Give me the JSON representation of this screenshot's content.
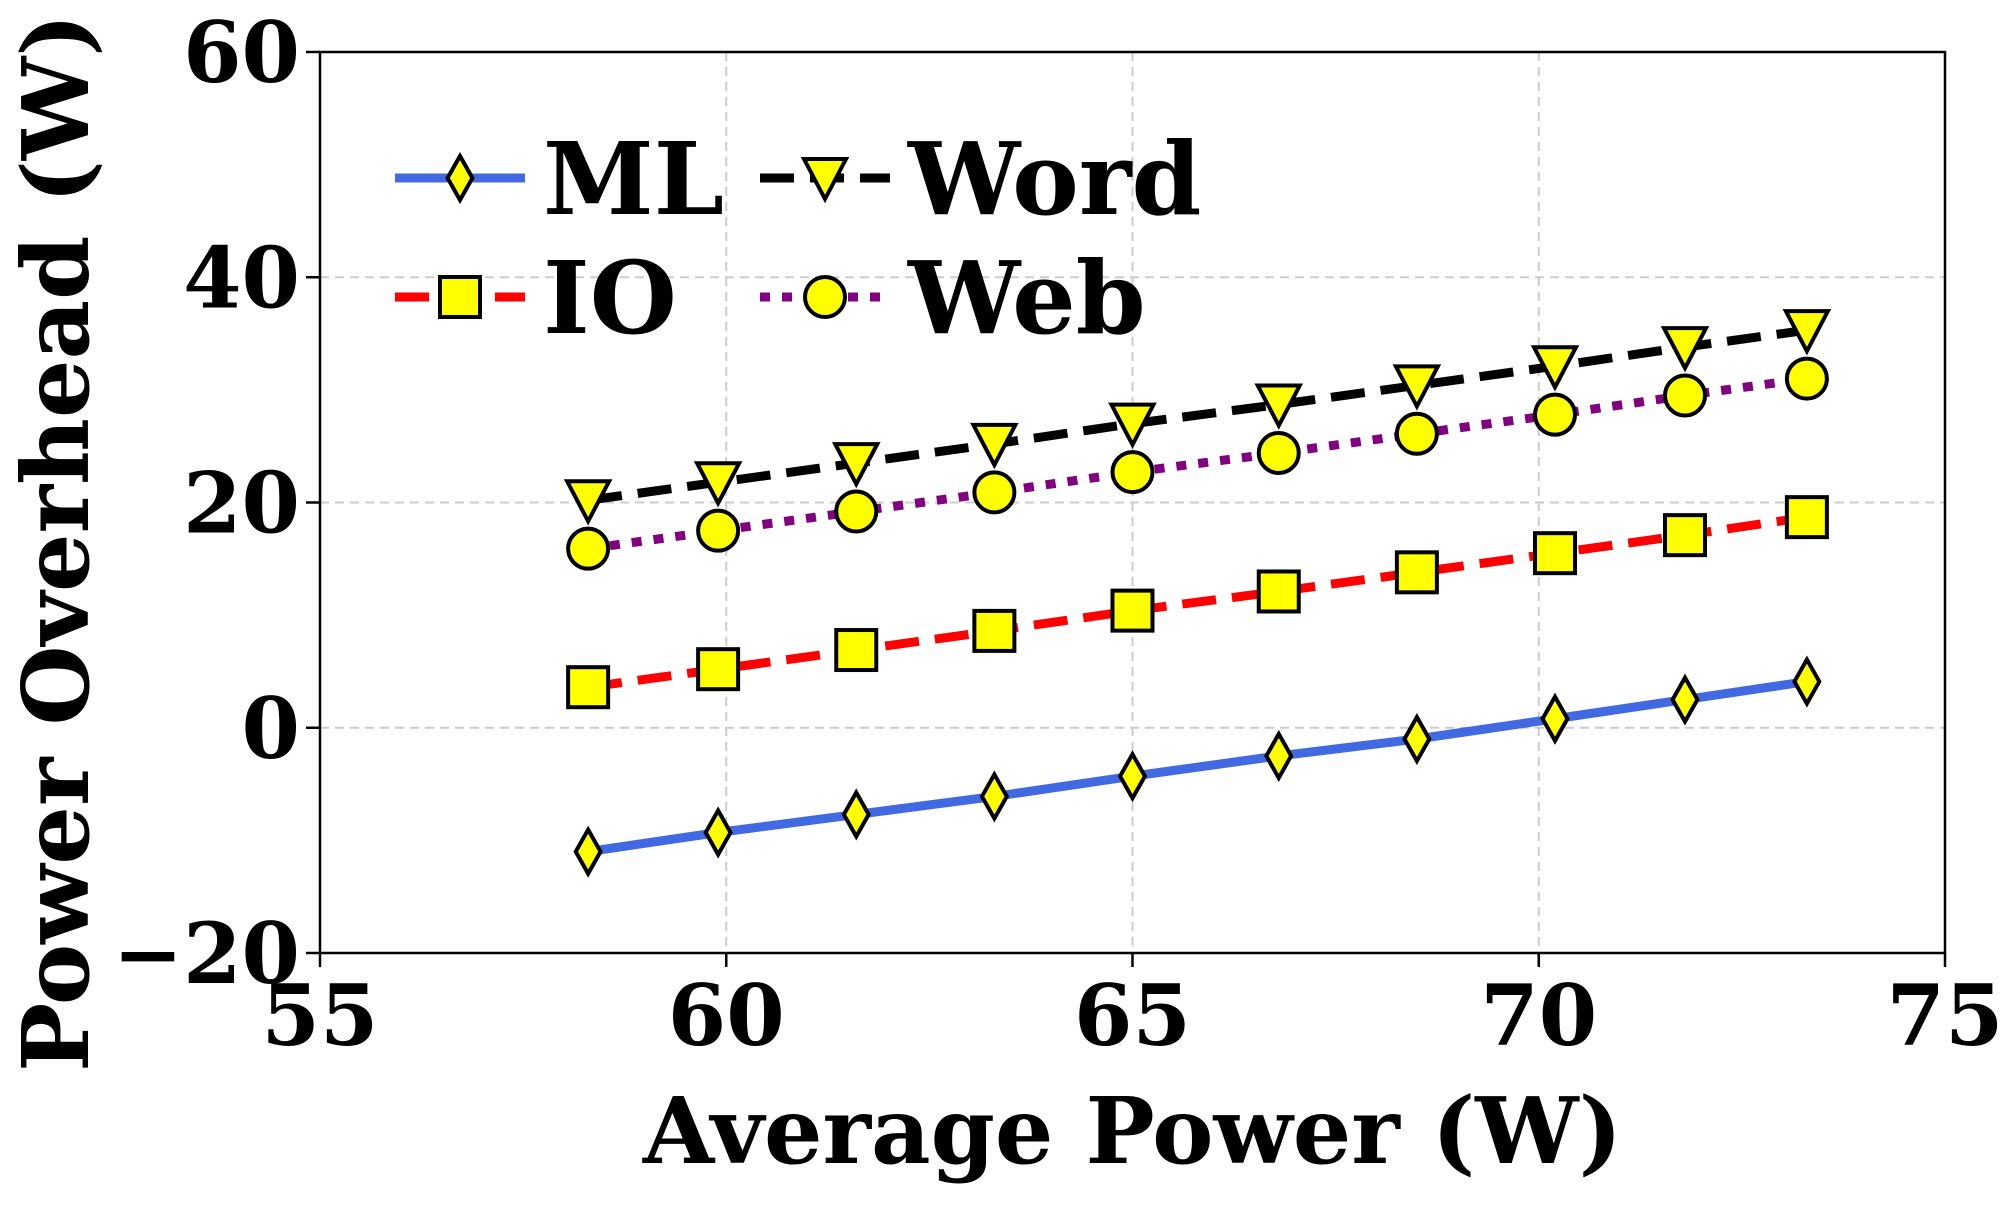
{
  "chart_data": {
    "type": "line",
    "xlabel": "Average Power (W)",
    "ylabel": "Power Overhead (W)",
    "xlim": [
      55,
      75
    ],
    "ylim": [
      -20,
      60
    ],
    "xticks": [
      55,
      60,
      65,
      70,
      75
    ],
    "yticks": [
      -20,
      0,
      20,
      40,
      60
    ],
    "x_tick_labels": [
      "55",
      "60",
      "65",
      "70",
      "75"
    ],
    "y_tick_labels": [
      "−20",
      "0",
      "20",
      "40",
      "60"
    ],
    "grid": true,
    "legend_placement": "top-left",
    "x": [
      58.3,
      59.9,
      61.6,
      63.3,
      65.0,
      66.8,
      68.5,
      70.2,
      71.8,
      73.3
    ],
    "series": [
      {
        "name": "ML",
        "color": "#4169e1",
        "line_style": "solid",
        "marker": "diamond",
        "values": [
          -11.0,
          -9.3,
          -7.7,
          -6.1,
          -4.3,
          -2.5,
          -1.0,
          0.8,
          2.5,
          4.1
        ]
      },
      {
        "name": "IO",
        "color": "#ff0000",
        "line_style": "dashed",
        "marker": "square",
        "values": [
          3.6,
          5.2,
          6.9,
          8.6,
          10.4,
          12.1,
          13.8,
          15.5,
          17.1,
          18.7
        ]
      },
      {
        "name": "Word",
        "color": "#000000",
        "line_style": "dashed",
        "marker": "triangle-down",
        "values": [
          20.2,
          21.8,
          23.5,
          25.2,
          27.0,
          28.7,
          30.4,
          32.1,
          33.8,
          35.3
        ]
      },
      {
        "name": "Web",
        "color": "#800080",
        "line_style": "dotted",
        "marker": "circle",
        "values": [
          15.9,
          17.5,
          19.2,
          20.9,
          22.7,
          24.4,
          26.1,
          27.8,
          29.5,
          31.0
        ]
      }
    ],
    "marker_fill": "#ffff00",
    "marker_edge": "#000000"
  }
}
